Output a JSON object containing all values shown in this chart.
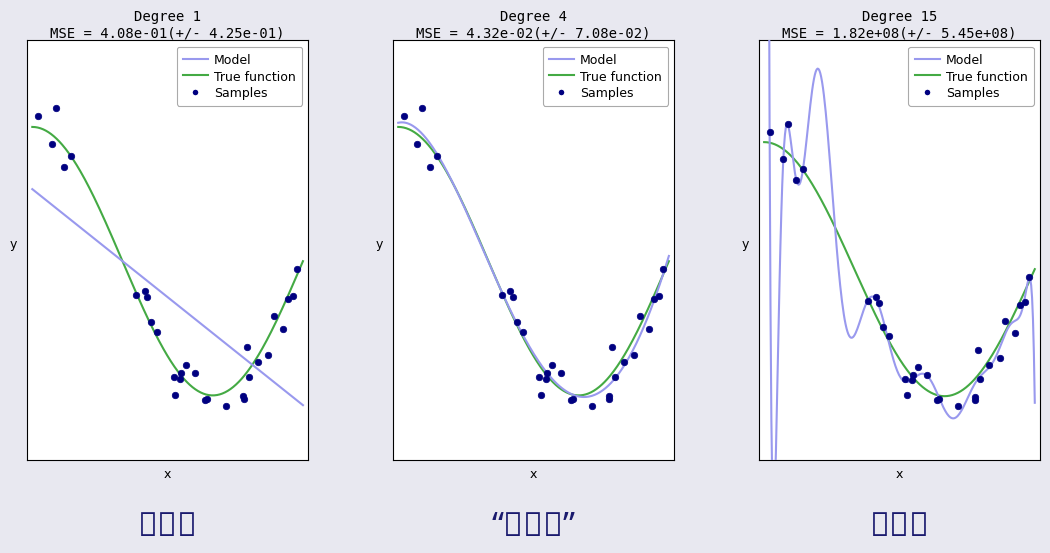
{
  "panels": [
    {
      "degree": 1,
      "title": "Degree 1",
      "mse_str": "MSE = 4.08e-01(+/- 4.25e-01)",
      "label": "欠拟合"
    },
    {
      "degree": 4,
      "title": "Degree 4",
      "mse_str": "MSE = 4.32e-02(+/- 7.08e-02)",
      "label": "“刚刚好”"
    },
    {
      "degree": 15,
      "title": "Degree 15",
      "mse_str": "MSE = 1.82e+08(+/- 5.45e+08)",
      "label": "过拟合"
    }
  ],
  "n_samples": 30,
  "random_seed": 0,
  "x_min": 0.0,
  "x_max": 1.0,
  "noise_std": 0.1,
  "model_color": "#9999ee",
  "true_color": "#44aa44",
  "sample_color": "#000080",
  "background_color": "#e8e8f0",
  "title_fontsize": 10,
  "label_fontsize": 24,
  "legend_fontsize": 9,
  "axis_label": "x",
  "y_axis_label": "y"
}
